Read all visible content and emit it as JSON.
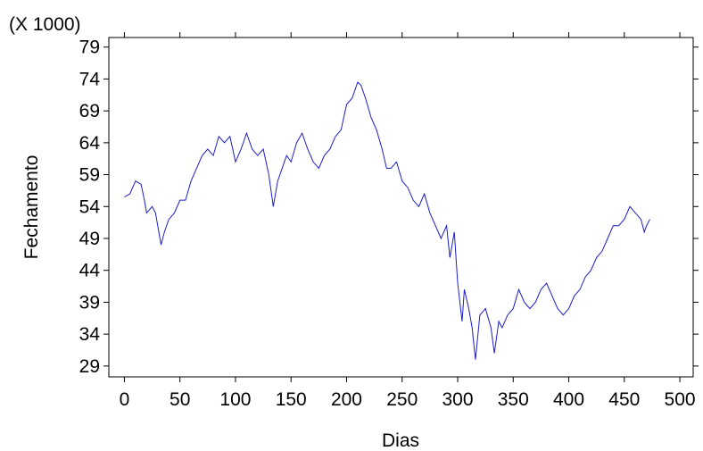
{
  "chart_data": {
    "type": "line",
    "x_label": "Dias",
    "y_label": "Fechamento",
    "y_multiplier_label": "(X 1000)",
    "xlim": [
      -14,
      512
    ],
    "xticks": [
      0,
      50,
      100,
      150,
      200,
      250,
      300,
      350,
      400,
      450,
      500
    ],
    "ylim": [
      27.3,
      80.5
    ],
    "yticks": [
      29,
      34,
      39,
      44,
      49,
      54,
      59,
      64,
      69,
      74,
      79
    ],
    "grid": false,
    "x": [
      0,
      5,
      10,
      15,
      18,
      20,
      25,
      28,
      30,
      33,
      36,
      40,
      45,
      50,
      55,
      60,
      65,
      70,
      75,
      80,
      85,
      90,
      95,
      100,
      105,
      110,
      115,
      120,
      125,
      130,
      134,
      138,
      142,
      146,
      150,
      155,
      160,
      165,
      170,
      175,
      180,
      185,
      190,
      195,
      200,
      205,
      210,
      213,
      217,
      222,
      227,
      232,
      236,
      240,
      245,
      250,
      255,
      260,
      265,
      270,
      275,
      280,
      285,
      290,
      293,
      297,
      300,
      304,
      306,
      310,
      313,
      316,
      320,
      325,
      330,
      333,
      337,
      340,
      345,
      350,
      355,
      360,
      365,
      370,
      375,
      380,
      385,
      390,
      395,
      400,
      405,
      410,
      415,
      420,
      425,
      430,
      435,
      440,
      445,
      450,
      455,
      460,
      465,
      468,
      470,
      473
    ],
    "series": [
      {
        "name": "Fechamento",
        "color": "#1c1ccf",
        "values": [
          55.5,
          56,
          58,
          57.5,
          55,
          53,
          54,
          53,
          51,
          48,
          50,
          52,
          53,
          55,
          55,
          58,
          60,
          62,
          63,
          62,
          65,
          64,
          65,
          61,
          63,
          65.5,
          63,
          62,
          63,
          59,
          54,
          58,
          60,
          62,
          61,
          64,
          65.5,
          63,
          61,
          60,
          62,
          63,
          65,
          66,
          70,
          71,
          73.5,
          73,
          71,
          68,
          66,
          63,
          60,
          60,
          61,
          58,
          57,
          55,
          54,
          56,
          53,
          51,
          49,
          51,
          46,
          50,
          42,
          36,
          41,
          38,
          35,
          30,
          37,
          38,
          35,
          31,
          36,
          35,
          37,
          38,
          41,
          39,
          38,
          39,
          41,
          42,
          40,
          38,
          37,
          38,
          40,
          41,
          43,
          44,
          46,
          47,
          49,
          51,
          51,
          52,
          54,
          53,
          52,
          50,
          51,
          52
        ]
      }
    ]
  }
}
